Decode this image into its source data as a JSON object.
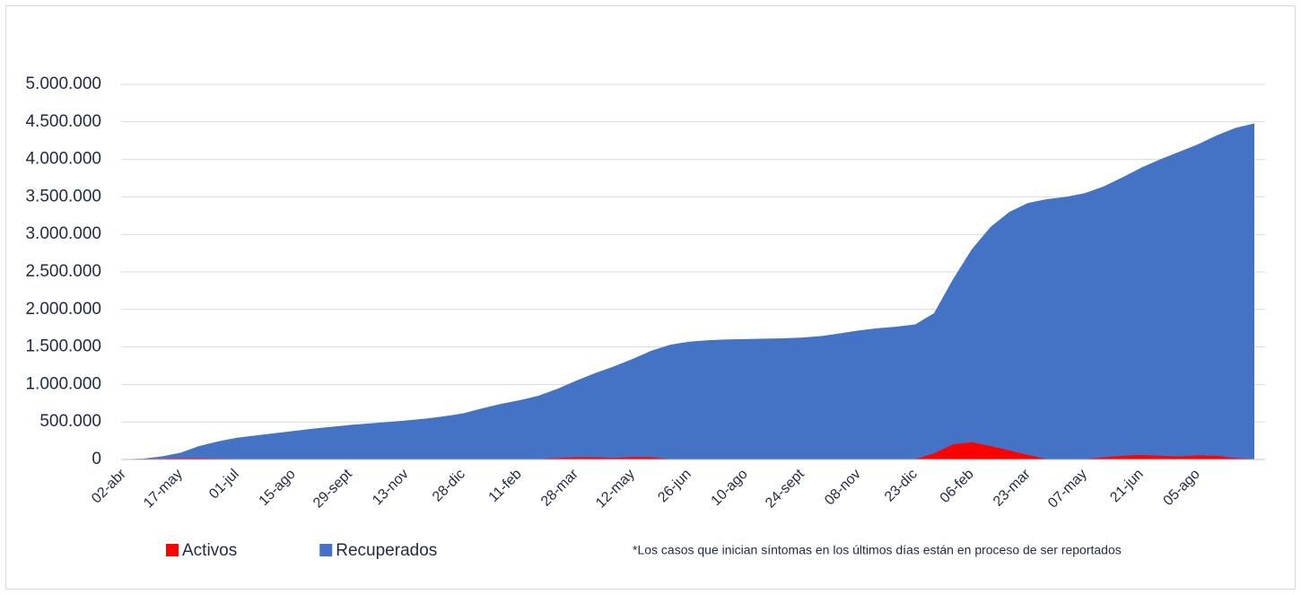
{
  "chart_data": {
    "type": "area",
    "categories": [
      "02-abr",
      null,
      null,
      "17-may",
      null,
      null,
      "01-jul",
      null,
      null,
      "15-ago",
      null,
      null,
      "29-sept",
      null,
      null,
      "13-nov",
      null,
      null,
      "28-dic",
      null,
      null,
      "11-feb",
      null,
      null,
      "28-mar",
      null,
      null,
      "12-may",
      null,
      null,
      "26-jun",
      null,
      null,
      "10-ago",
      null,
      null,
      "24-sept",
      null,
      null,
      "08-nov",
      null,
      null,
      "23-dic",
      null,
      null,
      "06-feb",
      null,
      null,
      "23-mar",
      null,
      null,
      "07-may",
      null,
      null,
      "21-jun",
      null,
      null,
      "05-ago",
      null,
      null,
      null
    ],
    "series": [
      {
        "name": "Recuperados",
        "color": "#4472c4",
        "values": [
          5000,
          10000,
          40000,
          90000,
          180000,
          240000,
          290000,
          320000,
          350000,
          380000,
          410000,
          435000,
          460000,
          480000,
          500000,
          520000,
          545000,
          575000,
          615000,
          680000,
          740000,
          790000,
          850000,
          940000,
          1050000,
          1150000,
          1240000,
          1340000,
          1450000,
          1530000,
          1570000,
          1590000,
          1600000,
          1605000,
          1610000,
          1615000,
          1625000,
          1645000,
          1680000,
          1720000,
          1750000,
          1770000,
          1800000,
          1950000,
          2400000,
          2800000,
          3100000,
          3300000,
          3420000,
          3470000,
          3500000,
          3550000,
          3640000,
          3760000,
          3890000,
          4000000,
          4100000,
          4200000,
          4320000,
          4420000,
          4480000
        ]
      },
      {
        "name": "Activos",
        "color": "#ff0000",
        "values": [
          5000,
          8000,
          10000,
          15000,
          15000,
          10000,
          5000,
          5000,
          5000,
          5000,
          5000,
          5000,
          5000,
          5000,
          5000,
          5000,
          5000,
          5000,
          5000,
          5000,
          5000,
          5000,
          5000,
          20000,
          30000,
          30000,
          20000,
          35000,
          30000,
          5000,
          5000,
          5000,
          5000,
          5000,
          5000,
          5000,
          5000,
          5000,
          5000,
          5000,
          5000,
          5000,
          5000,
          80000,
          200000,
          230000,
          180000,
          120000,
          60000,
          5000,
          5000,
          5000,
          30000,
          50000,
          60000,
          50000,
          40000,
          55000,
          50000,
          20000,
          5000
        ]
      }
    ],
    "legend_order": [
      "Activos",
      "Recuperados"
    ],
    "note": "*Los casos que inician síntomas en los últimos días están en proceso de ser reportados",
    "ylim": [
      0,
      5000000
    ],
    "yticks": [
      0,
      {
        "value": 500000,
        "label": "500.000"
      },
      {
        "value": 1000000,
        "label": "1.000.000"
      },
      {
        "value": 1500000,
        "label": "1.500.000"
      },
      {
        "value": 2000000,
        "label": "2.000.000"
      },
      {
        "value": 2500000,
        "label": "2.500.000"
      },
      {
        "value": 3000000,
        "label": "3.000.000"
      },
      {
        "value": 3500000,
        "label": "3.500.000"
      },
      {
        "value": 4000000,
        "label": "4.000.000"
      },
      {
        "value": 4500000,
        "label": "4.500.000"
      },
      {
        "value": 5000000,
        "label": "5.000.000"
      }
    ],
    "grid": true
  }
}
